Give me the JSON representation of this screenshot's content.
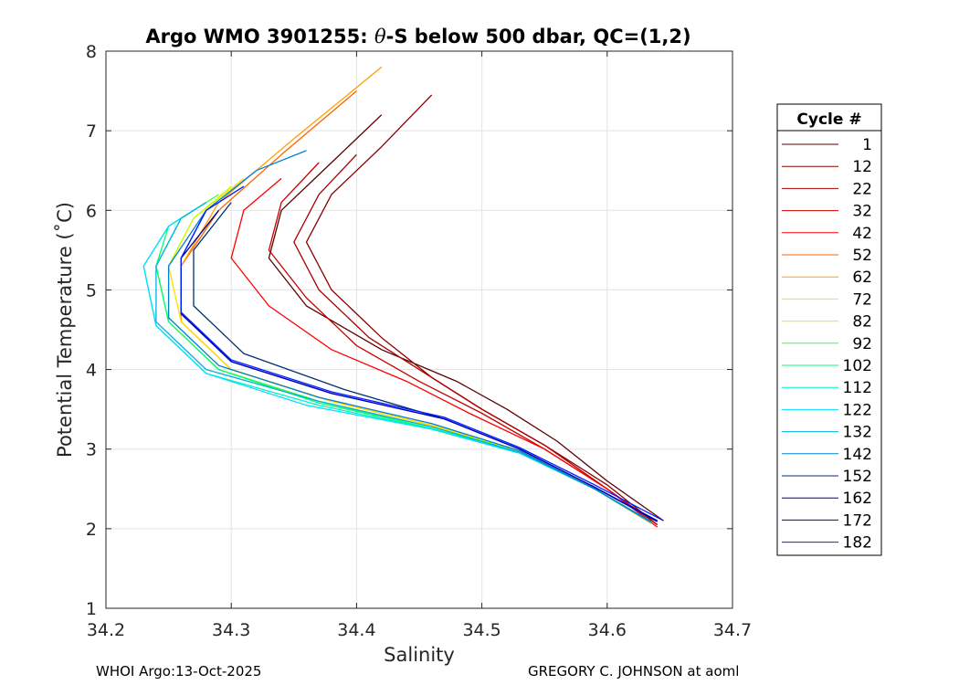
{
  "chart_data": {
    "type": "line",
    "title": "Argo WMO 3901255: θ-S below 500 dbar,  QC=(1,2)",
    "title_parts": {
      "pre": "Argo WMO 3901255: ",
      "theta": "θ",
      "post": "-S below 500 dbar,  QC=(1,2)"
    },
    "xlabel": "Salinity",
    "ylabel": "Potential Temperature (˚C)",
    "xlim": [
      34.2,
      34.7
    ],
    "ylim": [
      1,
      8
    ],
    "xticks": [
      "34.2",
      "34.3",
      "34.4",
      "34.5",
      "34.6",
      "34.7"
    ],
    "yticks": [
      "1",
      "2",
      "3",
      "4",
      "5",
      "6",
      "7",
      "8"
    ],
    "grid": true,
    "legend_position": "right, outside",
    "legend_title": "Cycle #",
    "series": [
      {
        "name": "1",
        "color": "#5a0000",
        "x": [
          34.645,
          34.6,
          34.56,
          34.52,
          34.48,
          34.42,
          34.36,
          34.33,
          34.34,
          34.38,
          34.42
        ],
        "y": [
          2.1,
          2.6,
          3.1,
          3.5,
          3.85,
          4.25,
          4.8,
          5.4,
          6.0,
          6.6,
          7.2
        ]
      },
      {
        "name": "12",
        "color": "#8b0000",
        "x": [
          34.64,
          34.6,
          34.55,
          34.5,
          34.46,
          34.42,
          34.38,
          34.36,
          34.38,
          34.42,
          34.46
        ],
        "y": [
          2.05,
          2.55,
          3.05,
          3.5,
          3.9,
          4.4,
          5.0,
          5.6,
          6.2,
          6.8,
          7.45
        ]
      },
      {
        "name": "22",
        "color": "#a80000",
        "x": [
          34.64,
          34.6,
          34.55,
          34.5,
          34.46,
          34.41,
          34.37,
          34.35,
          34.37,
          34.4
        ],
        "y": [
          2.05,
          2.5,
          3.05,
          3.5,
          3.9,
          4.4,
          5.0,
          5.6,
          6.2,
          6.7
        ]
      },
      {
        "name": "32",
        "color": "#c80000",
        "x": [
          34.64,
          34.6,
          34.55,
          34.5,
          34.45,
          34.4,
          34.36,
          34.33,
          34.34,
          34.37
        ],
        "y": [
          2.05,
          2.5,
          3.0,
          3.45,
          3.85,
          4.3,
          4.9,
          5.5,
          6.1,
          6.6
        ]
      },
      {
        "name": "42",
        "color": "#ff0000",
        "x": [
          34.64,
          34.6,
          34.55,
          34.49,
          34.44,
          34.38,
          34.33,
          34.3,
          34.31,
          34.34
        ],
        "y": [
          2.02,
          2.5,
          3.0,
          3.45,
          3.85,
          4.25,
          4.8,
          5.4,
          6.0,
          6.4
        ]
      },
      {
        "name": "52",
        "color": "#ff6000",
        "x": [
          34.635,
          34.59,
          34.53,
          34.46,
          34.38,
          34.3,
          34.26,
          34.26,
          34.29,
          34.34,
          34.4
        ],
        "y": [
          2.07,
          2.5,
          2.98,
          3.3,
          3.6,
          4.0,
          4.6,
          5.3,
          6.0,
          6.7,
          7.5
        ]
      },
      {
        "name": "62",
        "color": "#ffa000",
        "x": [
          34.635,
          34.59,
          34.53,
          34.46,
          34.38,
          34.3,
          34.26,
          34.26,
          34.29,
          34.35,
          34.42
        ],
        "y": [
          2.07,
          2.5,
          2.98,
          3.3,
          3.6,
          4.0,
          4.6,
          5.3,
          6.1,
          6.9,
          7.8
        ]
      },
      {
        "name": "72",
        "color": "#ffe000",
        "x": [
          34.635,
          34.59,
          34.53,
          34.46,
          34.38,
          34.3,
          34.26,
          34.25,
          34.27,
          34.31
        ],
        "y": [
          2.08,
          2.5,
          2.98,
          3.3,
          3.6,
          4.0,
          4.6,
          5.3,
          5.9,
          6.4
        ]
      },
      {
        "name": "82",
        "color": "#c0ff00",
        "x": [
          34.635,
          34.59,
          34.53,
          34.46,
          34.37,
          34.29,
          34.25,
          34.25,
          34.27,
          34.3
        ],
        "y": [
          2.08,
          2.5,
          2.98,
          3.28,
          3.6,
          4.0,
          4.6,
          5.3,
          5.9,
          6.3
        ]
      },
      {
        "name": "92",
        "color": "#40ff40",
        "x": [
          34.635,
          34.59,
          34.53,
          34.46,
          34.37,
          34.29,
          34.25,
          34.24,
          34.26,
          34.29
        ],
        "y": [
          2.08,
          2.5,
          2.96,
          3.26,
          3.6,
          4.0,
          4.6,
          5.3,
          5.9,
          6.2
        ]
      },
      {
        "name": "102",
        "color": "#00ff70",
        "x": [
          34.635,
          34.59,
          34.53,
          34.46,
          34.37,
          34.29,
          34.25,
          34.24,
          34.25,
          34.28
        ],
        "y": [
          2.08,
          2.5,
          2.96,
          3.26,
          3.58,
          4.0,
          4.6,
          5.3,
          5.8,
          6.1
        ]
      },
      {
        "name": "112",
        "color": "#00f0c0",
        "x": [
          34.635,
          34.59,
          34.53,
          34.46,
          34.37,
          34.28,
          34.24,
          34.23,
          34.25,
          34.27
        ],
        "y": [
          2.08,
          2.5,
          2.95,
          3.25,
          3.55,
          3.95,
          4.55,
          5.3,
          5.8,
          6.0
        ]
      },
      {
        "name": "122",
        "color": "#00e0ff",
        "x": [
          34.635,
          34.59,
          34.53,
          34.46,
          34.36,
          34.28,
          34.24,
          34.23,
          34.25,
          34.27
        ],
        "y": [
          2.08,
          2.5,
          2.95,
          3.25,
          3.55,
          3.95,
          4.55,
          5.3,
          5.8,
          6.0
        ]
      },
      {
        "name": "132",
        "color": "#00b0e0",
        "x": [
          34.635,
          34.59,
          34.53,
          34.46,
          34.37,
          34.28,
          34.24,
          34.24,
          34.26,
          34.28
        ],
        "y": [
          2.08,
          2.5,
          2.96,
          3.28,
          3.6,
          4.0,
          4.6,
          5.3,
          5.9,
          6.1
        ]
      },
      {
        "name": "142",
        "color": "#0080d0",
        "x": [
          34.635,
          34.59,
          34.53,
          34.46,
          34.37,
          34.29,
          34.25,
          34.25,
          34.28,
          34.32,
          34.36
        ],
        "y": [
          2.09,
          2.5,
          2.98,
          3.32,
          3.65,
          4.05,
          4.65,
          5.3,
          6.0,
          6.5,
          6.75
        ]
      },
      {
        "name": "152",
        "color": "#003070",
        "x": [
          34.64,
          34.59,
          34.53,
          34.47,
          34.39,
          34.31,
          34.27,
          34.27,
          34.3
        ],
        "y": [
          2.09,
          2.52,
          3.0,
          3.38,
          3.75,
          4.2,
          4.8,
          5.5,
          6.1
        ]
      },
      {
        "name": "162",
        "color": "#000090",
        "x": [
          34.64,
          34.59,
          34.53,
          34.47,
          34.38,
          34.3,
          34.26,
          34.26,
          34.29
        ],
        "y": [
          2.09,
          2.52,
          3.0,
          3.38,
          3.7,
          4.1,
          4.7,
          5.4,
          6.0
        ]
      },
      {
        "name": "172",
        "color": "#0000c0",
        "x": [
          34.64,
          34.59,
          34.53,
          34.47,
          34.38,
          34.3,
          34.26,
          34.26,
          34.28
        ],
        "y": [
          2.1,
          2.52,
          3.0,
          3.38,
          3.7,
          4.1,
          4.7,
          5.4,
          6.0
        ]
      },
      {
        "name": "182",
        "color": "#0020ff",
        "x": [
          34.645,
          34.59,
          34.53,
          34.47,
          34.38,
          34.3,
          34.26,
          34.26,
          34.28,
          34.31
        ],
        "y": [
          2.1,
          2.55,
          3.02,
          3.4,
          3.72,
          4.12,
          4.72,
          5.4,
          6.0,
          6.3
        ]
      }
    ]
  },
  "footer": {
    "left": "WHOI Argo:13-Oct-2025",
    "right": "GREGORY C. JOHNSON at aoml"
  }
}
